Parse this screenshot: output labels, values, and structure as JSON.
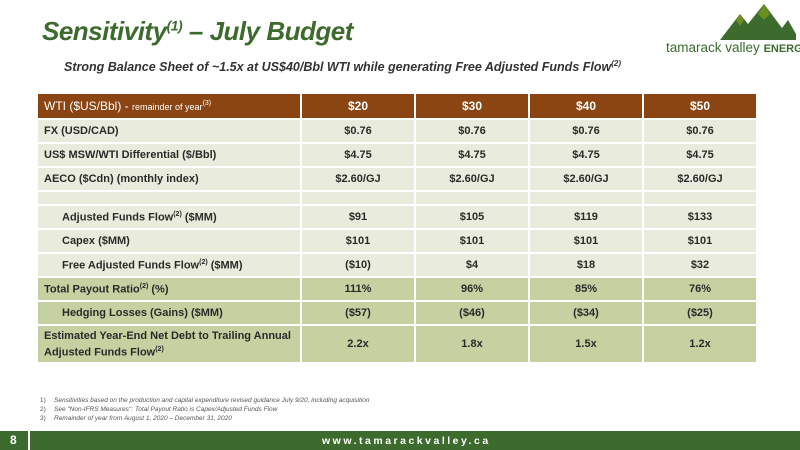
{
  "header": {
    "title_main": "Sensitivity",
    "title_sup": "(1)",
    "title_rest": " – July Budget",
    "subtitle_main": "Strong Balance Sheet of ~1.5x at US$40/Bbl WTI while generating Free Adjusted Funds Flow",
    "subtitle_sup": "(2)"
  },
  "logo": {
    "name_main": "tamarack valley",
    "name_bold": "ENERGY",
    "colors": [
      "#3d6b2e",
      "#6b8e23"
    ]
  },
  "table": {
    "header": {
      "label": "WTI  ($US/Bbl) - ",
      "label_small": "remainder of year",
      "label_sup": "(3)",
      "columns": [
        "$20",
        "$30",
        "$40",
        "$50"
      ]
    },
    "rows": [
      {
        "label": "FX (USD/CAD)",
        "values": [
          "$0.76",
          "$0.76",
          "$0.76",
          "$0.76"
        ]
      },
      {
        "label": "US$ MSW/WTI Differential ($/Bbl)",
        "values": [
          "$4.75",
          "$4.75",
          "$4.75",
          "$4.75"
        ]
      },
      {
        "label": "AECO ($Cdn) (monthly index)",
        "values": [
          "$2.60/GJ",
          "$2.60/GJ",
          "$2.60/GJ",
          "$2.60/GJ"
        ]
      },
      {
        "label": "Adjusted Funds Flow",
        "sup": "(2)",
        "suffix": " ($MM)",
        "values": [
          "$91",
          "$105",
          "$119",
          "$133"
        ]
      },
      {
        "label": "Capex ($MM)",
        "values": [
          "$101",
          "$101",
          "$101",
          "$101"
        ]
      },
      {
        "label": "Free Adjusted Funds Flow",
        "sup": "(2)",
        "suffix": " ($MM)",
        "values": [
          "($10)",
          "$4",
          "$18",
          "$32"
        ]
      },
      {
        "label": "Total Payout Ratio",
        "sup": "(2)",
        "suffix": " (%)",
        "values": [
          "111%",
          "96%",
          "85%",
          "76%"
        ]
      },
      {
        "label": "Hedging Losses (Gains) ($MM)",
        "values": [
          "($57)",
          "($46)",
          "($34)",
          "($25)"
        ]
      },
      {
        "label_line1": "Estimated Year-End Net Debt to Trailing Annual",
        "label_line2": "Adjusted Funds Flow",
        "sup": "(2)",
        "values": [
          "2.2x",
          "1.8x",
          "1.5x",
          "1.2x"
        ]
      }
    ]
  },
  "footnotes": [
    {
      "num": "1)",
      "text": "Sensitivities based on the production and capital expenditure revised guidance July 9/20, including acquisition"
    },
    {
      "num": "2)",
      "text": "See \"Non-IFRS Measures\": Total Payout Ratio is Capex/Adjusted Funds Flow"
    },
    {
      "num": "3)",
      "text": "Remainder of year from August 1, 2020 – December 31, 2020"
    }
  ],
  "footer": {
    "page_number": "8",
    "website": "www.tamarackvalley.ca"
  },
  "colors": {
    "brand_green": "#3d6b2e",
    "header_brown": "#8b4513",
    "row_light": "#e9ecdc",
    "row_green": "#c6d1a2"
  }
}
